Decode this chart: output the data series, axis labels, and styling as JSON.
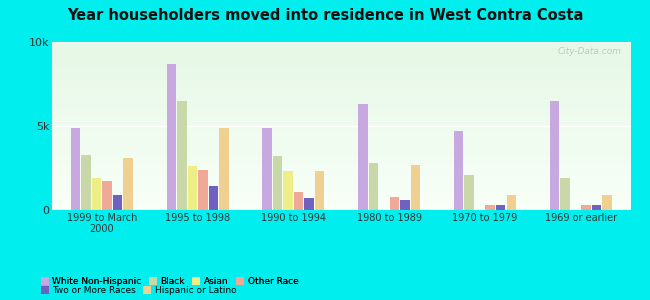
{
  "title": "Year householders moved into residence in West Contra Costa",
  "categories": [
    "1999 to March\n2000",
    "1995 to 1998",
    "1990 to 1994",
    "1980 to 1989",
    "1970 to 1979",
    "1969 or earlier"
  ],
  "series_order": [
    "White Non-Hispanic",
    "Black",
    "Asian",
    "Other Race",
    "Two or More Races",
    "Hispanic or Latino"
  ],
  "series": {
    "White Non-Hispanic": [
      4900,
      8700,
      4900,
      6300,
      4700,
      6500
    ],
    "Black": [
      3300,
      6500,
      3200,
      2800,
      2100,
      1900
    ],
    "Asian": [
      1900,
      2600,
      2300,
      0,
      0,
      0
    ],
    "Other Race": [
      1700,
      2400,
      1100,
      800,
      300,
      300
    ],
    "Two or More Races": [
      900,
      1400,
      700,
      600,
      300,
      300
    ],
    "Hispanic or Latino": [
      3100,
      4900,
      2300,
      2700,
      900,
      900
    ]
  },
  "colors": {
    "White Non-Hispanic": "#c8a8e0",
    "Black": "#c8d8a8",
    "Asian": "#eeee88",
    "Other Race": "#f0a898",
    "Two or More Races": "#7060c0",
    "Hispanic or Latino": "#f0d090"
  },
  "ylim": [
    0,
    10000
  ],
  "yticks": [
    0,
    5000,
    10000
  ],
  "ytick_labels": [
    "0",
    "5k",
    "10k"
  ],
  "figure_bg": "#00eeee",
  "watermark": "City-Data.com"
}
